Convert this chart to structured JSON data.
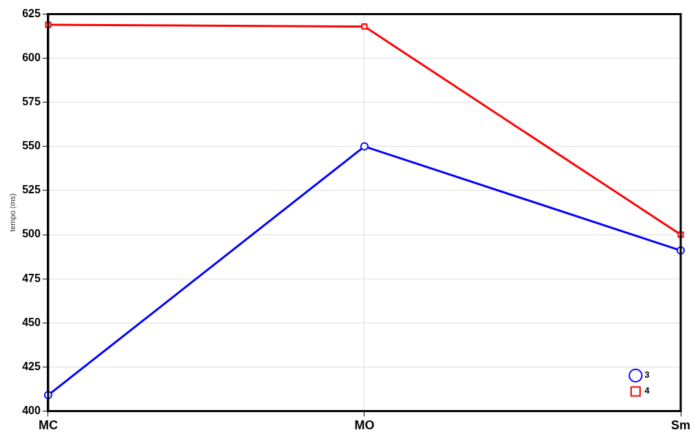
{
  "chart_data": {
    "type": "line",
    "ylabel": "tempo (ms)",
    "categories": [
      "MC",
      "MO",
      "Sm"
    ],
    "series": [
      {
        "name": "3",
        "color": "#0000ff",
        "values": [
          409,
          550,
          491
        ],
        "marker": "circle"
      },
      {
        "name": "4",
        "color": "#ff0000",
        "values": [
          619,
          618,
          500
        ],
        "marker": "square"
      }
    ],
    "ylim": [
      400,
      625
    ],
    "yticks": [
      400,
      425,
      450,
      475,
      500,
      525,
      550,
      575,
      600,
      625
    ],
    "grid": true,
    "legend": "bottom right",
    "line_style": "solid"
  }
}
